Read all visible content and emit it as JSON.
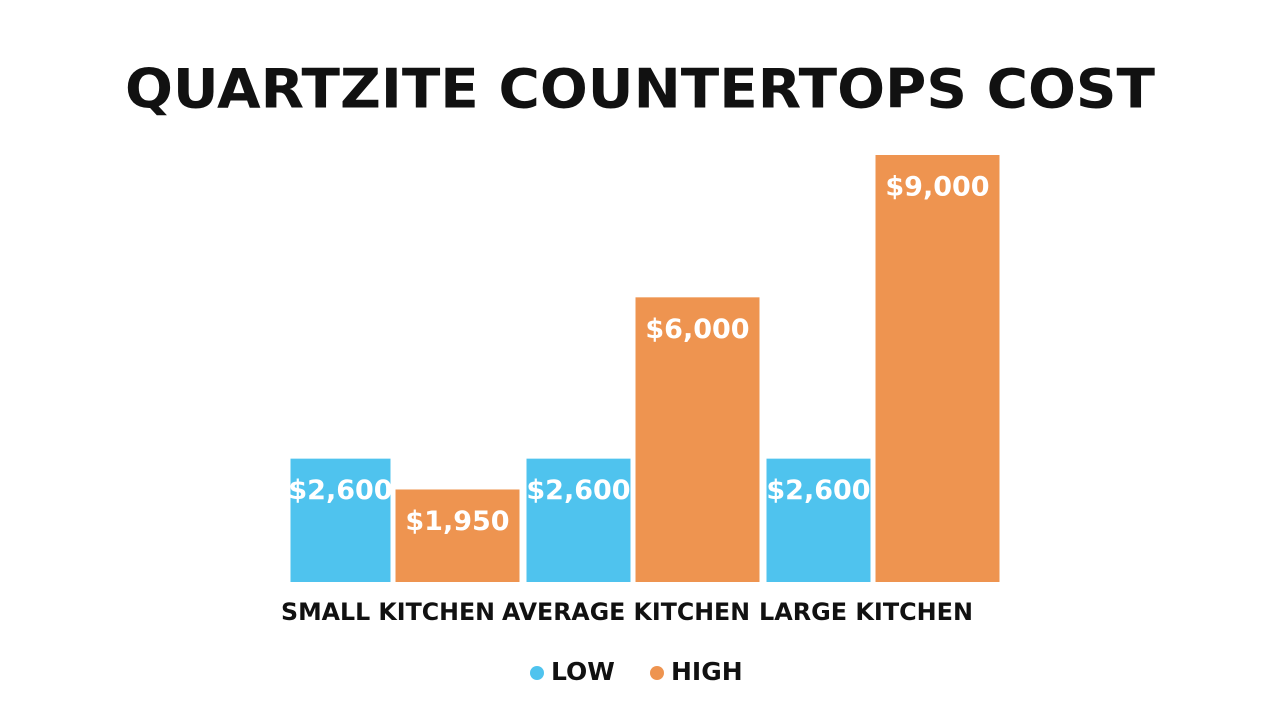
{
  "chart_data": {
    "type": "bar",
    "title": "QUARTZITE COUNTERTOPS COST",
    "categories": [
      "SMALL KITCHEN",
      "AVERAGE KITCHEN",
      "LARGE KITCHEN"
    ],
    "series": [
      {
        "name": "LOW",
        "color": "#4fc3ee",
        "values": [
          2600,
          2600,
          2600
        ],
        "value_labels": [
          "$2,600",
          "$2,600",
          "$2,600"
        ]
      },
      {
        "name": "HIGH",
        "color": "#ee9450",
        "values": [
          1950,
          6000,
          9000
        ],
        "value_labels": [
          "$1,950",
          "$6,000",
          "$9,000"
        ]
      }
    ],
    "ylim": [
      0,
      9000
    ],
    "legend": "bottom"
  }
}
